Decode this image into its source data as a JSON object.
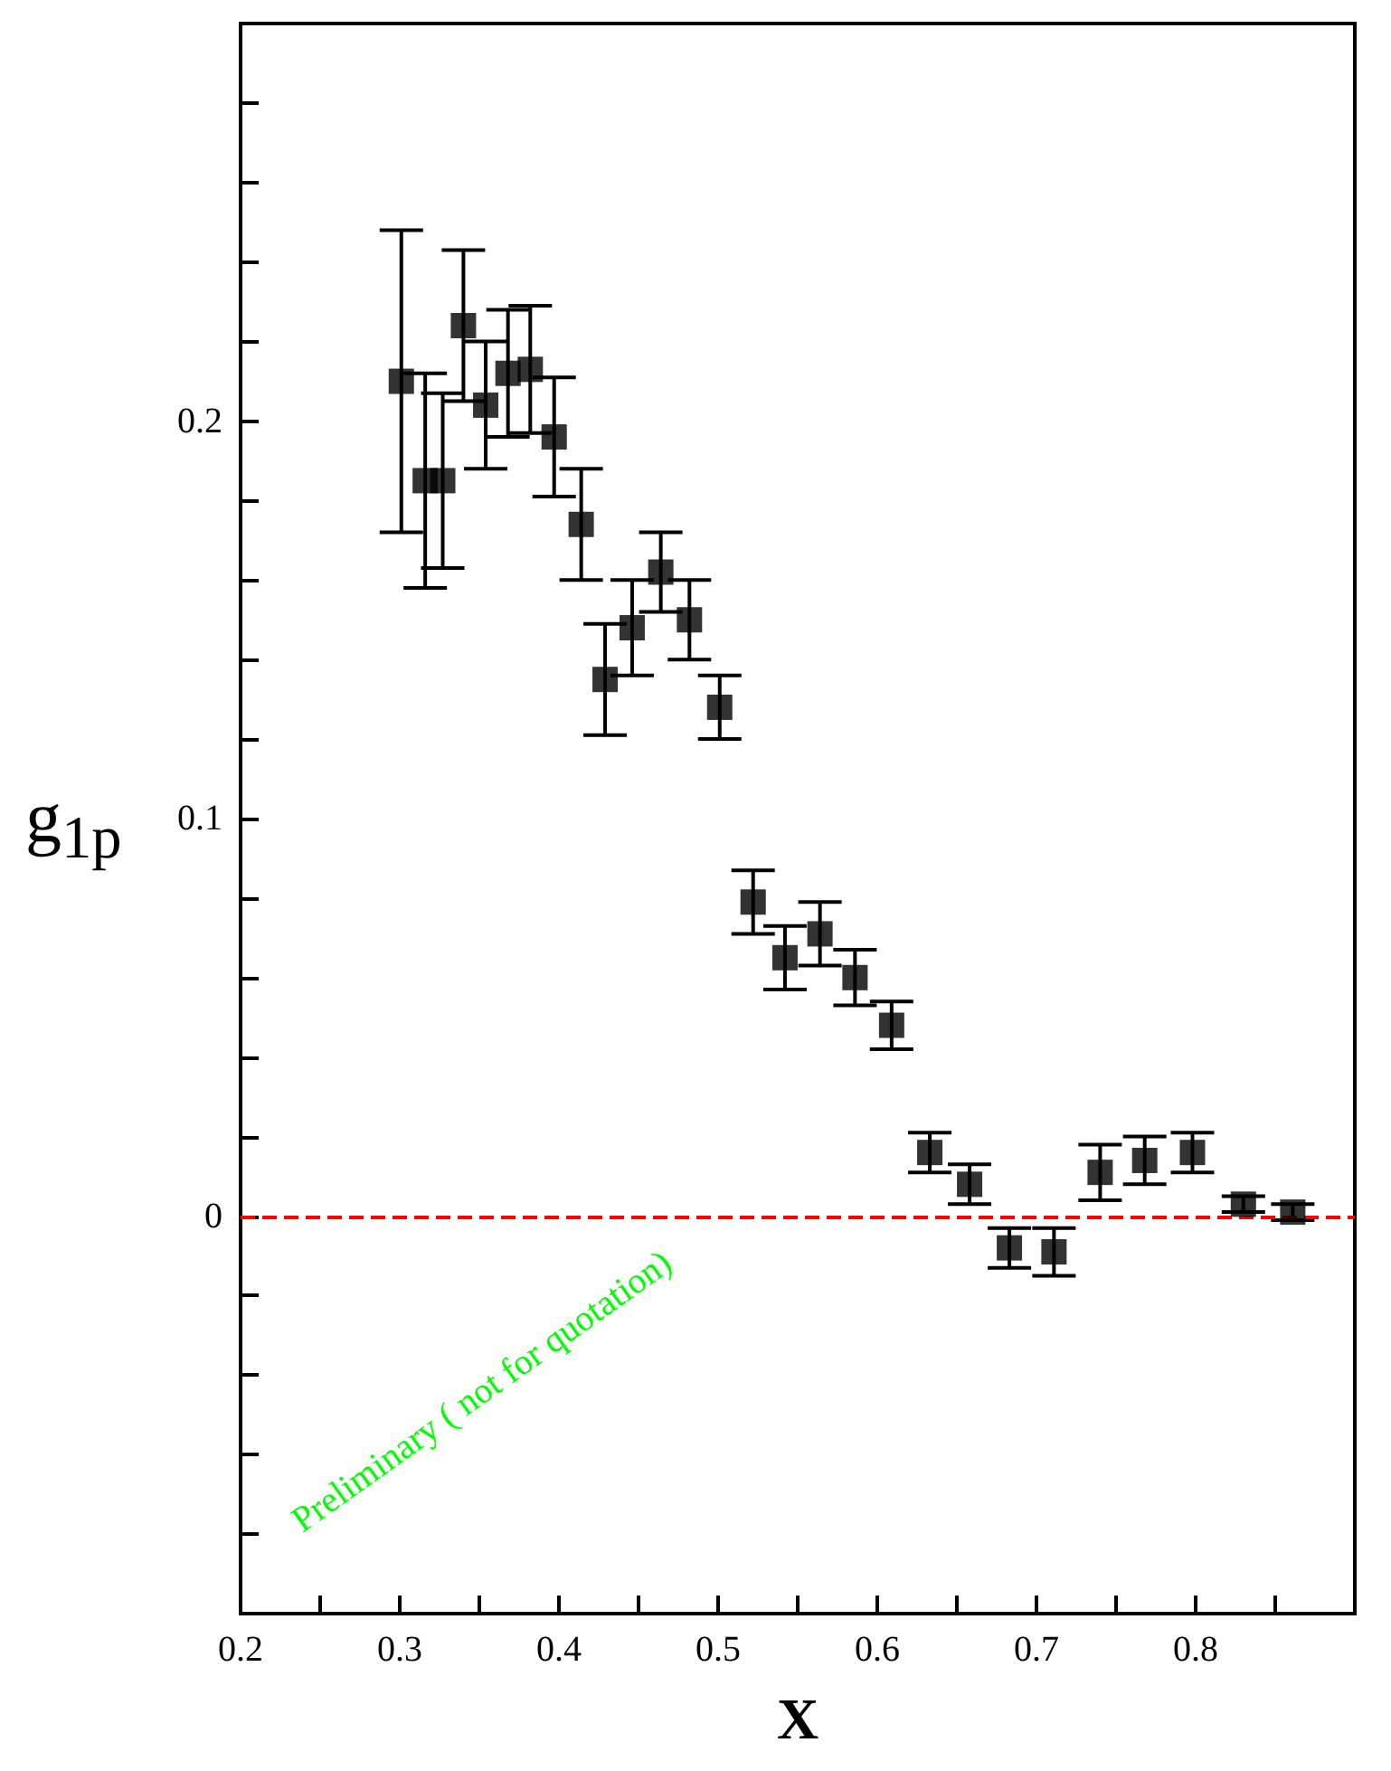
{
  "chart_data": {
    "type": "scatter",
    "xlabel": "X",
    "ylabel": "g$_{1p}$",
    "x": [
      0.301,
      0.316,
      0.327,
      0.34,
      0.354,
      0.368,
      0.382,
      0.397,
      0.414,
      0.429,
      0.446,
      0.464,
      0.482,
      0.501,
      0.522,
      0.542,
      0.564,
      0.586,
      0.609,
      0.633,
      0.658,
      0.683,
      0.711,
      0.74,
      0.768,
      0.798,
      0.83,
      0.861
    ],
    "series": [
      {
        "color": "#000000",
        "values": [
          0.21,
          0.185,
          0.185,
          0.224,
          0.204,
          0.212,
          0.213,
          0.196,
          0.174,
          0.135,
          0.148,
          0.162,
          0.15,
          0.128,
          0.079,
          0.065,
          0.071,
          0.06,
          0.048,
          0.016,
          0.008,
          -0.008,
          -0.009,
          0.011,
          0.014,
          0.016,
          0.003,
          0.001
        ],
        "errors": [
          0.038,
          0.027,
          0.022,
          0.019,
          0.016,
          0.016,
          0.016,
          0.015,
          0.014,
          0.014,
          0.012,
          0.01,
          0.01,
          0.008,
          0.008,
          0.008,
          0.008,
          0.007,
          0.006,
          0.005,
          0.005,
          0.005,
          0.006,
          0.007,
          0.006,
          0.005,
          0.002,
          0.002
        ]
      }
    ],
    "marker": "square",
    "xlim": [
      0.2,
      0.9
    ],
    "ylim": [
      -0.1,
      0.3
    ],
    "xticks": [
      0.2,
      {
        "value": 0.25,
        "label": null
      },
      0.3,
      {
        "value": 0.35,
        "label": null
      },
      0.4,
      {
        "value": 0.45,
        "label": null
      },
      0.5,
      {
        "value": 0.55,
        "label": null
      },
      0.6,
      {
        "value": 0.65,
        "label": null
      },
      0.7,
      {
        "value": 0.75,
        "label": null
      },
      0.8,
      {
        "value": 0.85,
        "label": null
      }
    ],
    "yticks": [
      {
        "value": -0.08,
        "label": null
      },
      {
        "value": -0.06,
        "label": null
      },
      {
        "value": -0.04,
        "label": null
      },
      {
        "value": -0.02,
        "label": null
      },
      0,
      {
        "value": 0.02,
        "label": null
      },
      {
        "value": 0.04,
        "label": null
      },
      {
        "value": 0.06,
        "label": null
      },
      {
        "value": 0.08,
        "label": null
      },
      0.1,
      {
        "value": 0.12,
        "label": null
      },
      {
        "value": 0.14,
        "label": null
      },
      {
        "value": 0.16,
        "label": null
      },
      {
        "value": 0.18,
        "label": null
      },
      0.2,
      {
        "value": 0.22,
        "label": null
      },
      {
        "value": 0.24,
        "label": null
      },
      {
        "value": 0.26,
        "label": null
      },
      {
        "value": 0.28,
        "label": null
      }
    ],
    "ref_lines": [
      {
        "axis": "y",
        "value": 0,
        "color": "#ff0000",
        "line_style": "dashed"
      }
    ],
    "annotations": [
      "Preliminary ( not for quotation)"
    ]
  }
}
